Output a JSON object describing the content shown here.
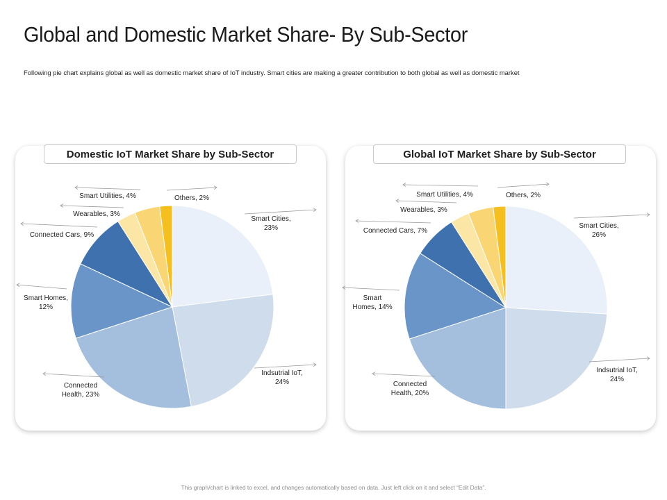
{
  "page": {
    "title": "Global and Domestic Market Share- By Sub-Sector",
    "subtitle": "Following pie chart explains global as well as domestic market share of IoT industry. Smart cities are making a greater contribution to both global as well as domestic market",
    "footer": "This graph/chart is linked to excel, and changes automatically based on data. Just left click on it and select “Edit Data”."
  },
  "colors": {
    "Smart Cities": "#eaf0f9",
    "Indsutrial IoT": "#cfdcec",
    "Connected Health": "#a4bedd",
    "Smart Homes": "#6a95c9",
    "Connected Cars": "#3e71ae",
    "Wearables": "#fbe6a6",
    "Smart Utilities": "#f9d673",
    "Others": "#f5bf1f"
  },
  "chart_data": [
    {
      "type": "pie",
      "title": "Domestic IoT Market Share by Sub-Sector",
      "slices": [
        {
          "label": "Smart Cities",
          "value": 23,
          "text": [
            "Smart Cities,",
            "23%"
          ]
        },
        {
          "label": "Indsutrial IoT",
          "value": 24,
          "text": [
            "Indsutrial IoT,",
            "24%"
          ]
        },
        {
          "label": "Connected Health",
          "value": 23,
          "text": [
            "Connected",
            "Health, 23%"
          ]
        },
        {
          "label": "Smart Homes",
          "value": 12,
          "text": [
            "Smart Homes,",
            "12%"
          ]
        },
        {
          "label": "Connected Cars",
          "value": 9,
          "text": [
            "Connected Cars, 9%"
          ]
        },
        {
          "label": "Wearables",
          "value": 3,
          "text": [
            "Wearables, 3%"
          ]
        },
        {
          "label": "Smart Utilities",
          "value": 4,
          "text": [
            "Smart Utilities, 4%"
          ]
        },
        {
          "label": "Others",
          "value": 2,
          "text": [
            "Others, 2%"
          ]
        }
      ]
    },
    {
      "type": "pie",
      "title": "Global IoT Market Share by Sub-Sector",
      "slices": [
        {
          "label": "Smart Cities",
          "value": 26,
          "text": [
            "Smart Cities,",
            "26%"
          ]
        },
        {
          "label": "Indsutrial IoT",
          "value": 24,
          "text": [
            "Indsutrial IoT,",
            "24%"
          ]
        },
        {
          "label": "Connected Health",
          "value": 20,
          "text": [
            "Connected",
            "Health, 20%"
          ]
        },
        {
          "label": "Smart Homes",
          "value": 14,
          "text": [
            "Smart",
            "Homes, 14%"
          ]
        },
        {
          "label": "Connected Cars",
          "value": 7,
          "text": [
            "Connected Cars, 7%"
          ]
        },
        {
          "label": "Wearables",
          "value": 3,
          "text": [
            "Wearables, 3%"
          ]
        },
        {
          "label": "Smart Utilities",
          "value": 4,
          "text": [
            "Smart Utilities, 4%"
          ]
        },
        {
          "label": "Others",
          "value": 2,
          "text": [
            "Others, 2%"
          ]
        }
      ]
    }
  ]
}
